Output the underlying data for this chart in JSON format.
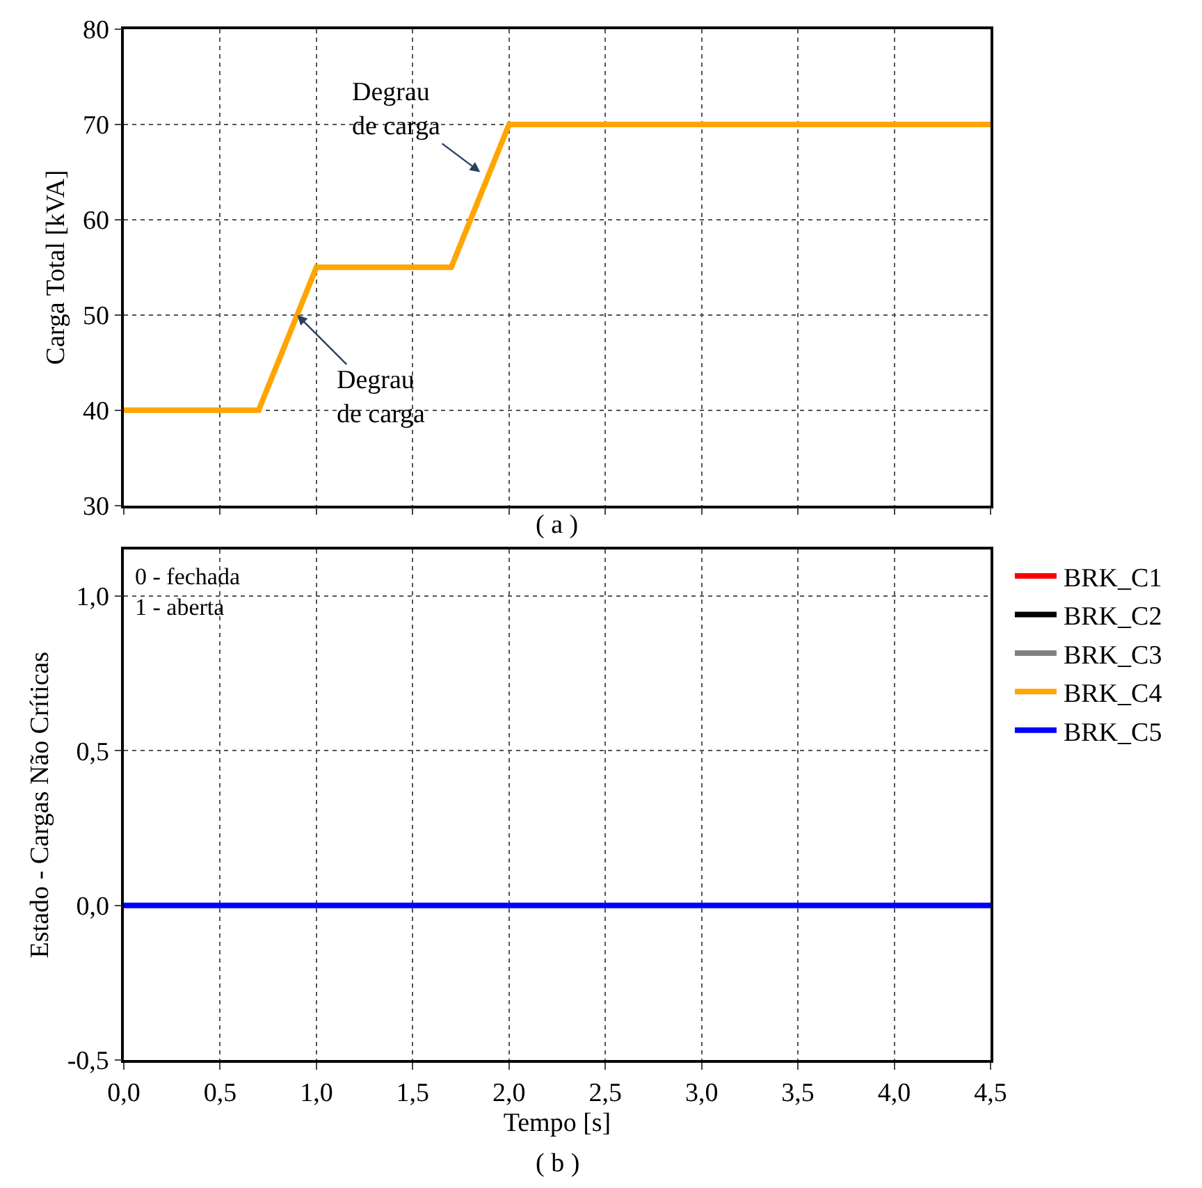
{
  "chart_data": [
    {
      "type": "line",
      "ylabel": "Carga Total [kVA]",
      "x": [
        0,
        0.7,
        1.0,
        1.7,
        2.0,
        4.5
      ],
      "values": [
        40,
        40,
        55,
        55,
        70,
        70
      ],
      "color": "#ffa500",
      "xlim": [
        0,
        4.5
      ],
      "xticks": [
        {
          "value": 0,
          "label": null
        },
        {
          "value": 0.5,
          "label": null
        },
        {
          "value": 1,
          "label": null
        },
        {
          "value": 1.5,
          "label": null
        },
        {
          "value": 2,
          "label": null
        },
        {
          "value": 2.5,
          "label": null
        },
        {
          "value": 3,
          "label": null
        },
        {
          "value": 3.5,
          "label": null
        },
        {
          "value": 4,
          "label": null
        },
        {
          "value": 4.5,
          "label": null
        }
      ],
      "ylim": [
        30,
        80
      ],
      "yticks": [
        30,
        40,
        50,
        60,
        70,
        80
      ],
      "grid": true,
      "tick_labels": "y",
      "legend": false,
      "annotations": [
        {
          "text": "Degrau\nde carga",
          "x": 0.9,
          "y": 50
        },
        {
          "text": "Degrau\nde carga",
          "x": 1.85,
          "y": 65
        },
        "( a )"
      ]
    },
    {
      "type": "line",
      "xlabel": "Tempo [s]",
      "ylabel": "Estado - Cargas Não Críticas",
      "x": [
        0,
        4.5
      ],
      "series": [
        {
          "name": "BRK_C1",
          "color": "#ff0000",
          "values": [
            null,
            null
          ]
        },
        {
          "name": "BRK_C2",
          "color": "#000000",
          "values": [
            null,
            null
          ]
        },
        {
          "name": "BRK_C3",
          "color": "#808080",
          "values": [
            null,
            null
          ]
        },
        {
          "name": "BRK_C4",
          "color": "#ffa500",
          "values": [
            null,
            null
          ]
        },
        {
          "name": "BRK_C5",
          "color": "#0000ff",
          "values": [
            0,
            0
          ]
        }
      ],
      "xlim": [
        0,
        4.5
      ],
      "xticks": [
        {
          "value": 0,
          "label": "0,0"
        },
        {
          "value": 0.5,
          "label": "0,5"
        },
        {
          "value": 1,
          "label": "1,0"
        },
        {
          "value": 1.5,
          "label": "1,5"
        },
        {
          "value": 2,
          "label": "2,0"
        },
        {
          "value": 2.5,
          "label": "2,5"
        },
        {
          "value": 3,
          "label": "3,0"
        },
        {
          "value": 3.5,
          "label": "3,5"
        },
        {
          "value": 4,
          "label": "4,0"
        },
        {
          "value": 4.5,
          "label": "4,5"
        }
      ],
      "ylim": [
        -0.5,
        1.15
      ],
      "yticks": [
        {
          "value": -0.5,
          "label": "-0,5"
        },
        {
          "value": 0,
          "label": "0,0"
        },
        {
          "value": 0.5,
          "label": "0,5"
        },
        {
          "value": 1,
          "label": "1,0"
        }
      ],
      "grid": true,
      "legend": "right",
      "annotations": [
        "0 - fechada\n1 - aberta",
        "( b )"
      ]
    }
  ]
}
